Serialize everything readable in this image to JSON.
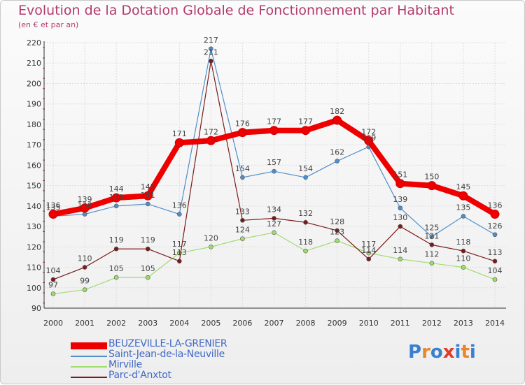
{
  "title": "Evolution de la Dotation Globale de Fonctionnement par Habitant",
  "subtitle": "(en € et par an)",
  "logo": {
    "text": "Proxiti",
    "letters": [
      "P",
      "r",
      "o",
      "x",
      "i",
      "t",
      "i"
    ],
    "colors": [
      "#3a7fd0",
      "#e8872b",
      "#3a7fd0",
      "#e03c2a",
      "#3a7fd0",
      "#e8872b",
      "#3a7fd0"
    ]
  },
  "chart_data": {
    "type": "line",
    "title": "Evolution de la Dotation Globale de Fonctionnement par Habitant",
    "subtitle": "(en € et par an)",
    "xlabel": "",
    "ylabel": "",
    "x": [
      "2000",
      "2001",
      "2002",
      "2003",
      "2004",
      "2005",
      "2006",
      "2007",
      "2008",
      "2009",
      "2010",
      "2011",
      "2012",
      "2013",
      "2014"
    ],
    "ylim": [
      90,
      220
    ],
    "yticks": [
      "90",
      "100",
      "110",
      "120",
      "130",
      "140",
      "150",
      "160",
      "170",
      "180",
      "190",
      "200",
      "210",
      "220"
    ],
    "grid": true,
    "legend_position": "bottom-left",
    "series": [
      {
        "name": "BEUZEVILLE-LA-GRENIER",
        "color": "#ee0000",
        "values": [
          136,
          139,
          144,
          145,
          171,
          172,
          176,
          177,
          177,
          182,
          172,
          151,
          150,
          145,
          136
        ],
        "labels": [
          "136",
          "139",
          "144",
          "145",
          "171",
          "172",
          "176",
          "177",
          "177",
          "182",
          "172",
          "151",
          "150",
          "145",
          "136"
        ]
      },
      {
        "name": "Saint-Jean-de-la-Neuville",
        "color": "#4f8fc9",
        "values": [
          135,
          136,
          140,
          141,
          136,
          217,
          154,
          157,
          154,
          162,
          169,
          139,
          125,
          135,
          126
        ],
        "labels": [
          "135",
          "136",
          "140",
          "141",
          "136",
          "217",
          "154",
          "157",
          "154",
          "162",
          "169",
          "139",
          "125",
          "135",
          "126"
        ]
      },
      {
        "name": "Mirville",
        "color": "#9fdc6e",
        "values": [
          97,
          99,
          105,
          105,
          117,
          120,
          124,
          127,
          118,
          123,
          117,
          114,
          112,
          110,
          104
        ],
        "labels": [
          "97",
          "99",
          "105",
          "105",
          "117",
          "120",
          "124",
          "127",
          "118",
          "123",
          "117",
          "114",
          "112",
          "110",
          "104"
        ]
      },
      {
        "name": "Parc-d'Anxtot",
        "color": "#7a1a1a",
        "values": [
          104,
          110,
          119,
          119,
          113,
          211,
          133,
          134,
          132,
          128,
          114,
          130,
          121,
          118,
          113
        ],
        "labels": [
          "104",
          "110",
          "119",
          "119",
          "113",
          "211",
          "133",
          "134",
          "132",
          "128",
          "114",
          "130",
          "121",
          "118",
          "113"
        ]
      }
    ]
  }
}
